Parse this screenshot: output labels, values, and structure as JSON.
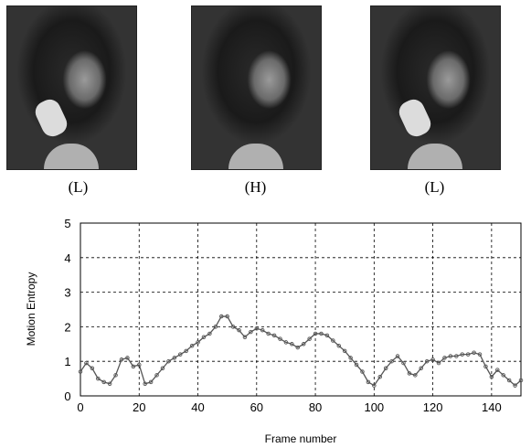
{
  "frames": [
    {
      "label": "(L)"
    },
    {
      "label": "(H)"
    },
    {
      "label": "(L)"
    }
  ],
  "chart_data": {
    "type": "line",
    "xlabel": "Frame number",
    "ylabel": "Motion Entropy",
    "xlim": [
      0,
      150
    ],
    "ylim": [
      0,
      5
    ],
    "xticks": [
      0,
      20,
      40,
      60,
      80,
      100,
      120,
      140
    ],
    "yticks": [
      0,
      1,
      2,
      3,
      4,
      5
    ],
    "grid": true,
    "series": [
      {
        "color": "#555555",
        "x": [
          0,
          2,
          4,
          6,
          8,
          10,
          12,
          14,
          16,
          18,
          20,
          22,
          24,
          26,
          28,
          30,
          32,
          34,
          36,
          38,
          40,
          42,
          44,
          46,
          48,
          50,
          52,
          54,
          56,
          58,
          60,
          62,
          64,
          66,
          68,
          70,
          72,
          74,
          76,
          78,
          80,
          82,
          84,
          86,
          88,
          90,
          92,
          94,
          96,
          98,
          100,
          102,
          104,
          106,
          108,
          110,
          112,
          114,
          116,
          118,
          120,
          122,
          124,
          126,
          128,
          130,
          132,
          134,
          136,
          138,
          140,
          142,
          144,
          146,
          148,
          150
        ],
        "y": [
          0.7,
          0.95,
          0.8,
          0.5,
          0.4,
          0.35,
          0.6,
          1.05,
          1.1,
          0.85,
          0.9,
          0.35,
          0.4,
          0.6,
          0.8,
          1.0,
          1.1,
          1.2,
          1.3,
          1.45,
          1.55,
          1.7,
          1.8,
          2.0,
          2.3,
          2.3,
          2.0,
          1.9,
          1.7,
          1.85,
          1.95,
          1.9,
          1.8,
          1.75,
          1.65,
          1.55,
          1.5,
          1.4,
          1.5,
          1.65,
          1.8,
          1.8,
          1.75,
          1.6,
          1.45,
          1.3,
          1.1,
          0.9,
          0.7,
          0.4,
          0.3,
          0.55,
          0.8,
          1.0,
          1.15,
          0.95,
          0.65,
          0.6,
          0.8,
          1.0,
          1.05,
          0.95,
          1.1,
          1.15,
          1.15,
          1.2,
          1.2,
          1.25,
          1.2,
          0.85,
          0.55,
          0.75,
          0.6,
          0.45,
          0.3,
          0.45
        ]
      }
    ]
  }
}
